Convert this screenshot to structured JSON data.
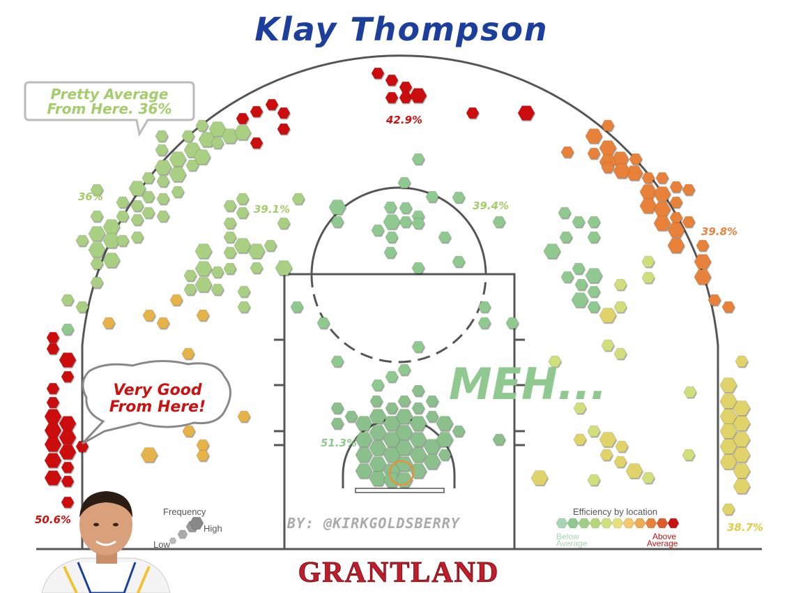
{
  "title": "Klay Thompson",
  "brand": "GRANTLAND",
  "credit": "BY: @KIRKGOLDSBERRY",
  "annotations": {
    "meh": "MEH...",
    "left_bubble_line1": "Pretty Average",
    "left_bubble_line2": "From Here. 36%",
    "corner_bubble_line1": "Very Good",
    "corner_bubble_line2": "From Here!"
  },
  "legend": {
    "frequency_title": "Frequency",
    "frequency_low": "Low",
    "frequency_high": "High",
    "efficiency_title": "Efficiency by location",
    "below_line1": "Below",
    "below_line2": "Average",
    "above_line1": "Above",
    "above_line2": "Average",
    "scale_colors": [
      "#a8d5b5",
      "#8fc98f",
      "#9fcf86",
      "#b6d67a",
      "#cfe07a",
      "#e8e07a",
      "#f2c86a",
      "#eeaa55",
      "#e8823a",
      "#dd5a2a",
      "#cc1111"
    ]
  },
  "colors": {
    "court_line": "#555555",
    "title": "#1c3f9c",
    "brand": "#c21d2a"
  },
  "chart_data": {
    "type": "heatmap",
    "title": "Klay Thompson",
    "encoding": "hexagon size = shot frequency, hexagon color = efficiency vs. league average",
    "zones": [
      {
        "label": "50.6%",
        "zone": "left corner three",
        "fg_pct": 50.6,
        "rating": "above average"
      },
      {
        "label": "36%",
        "zone": "left wing three",
        "fg_pct": 36.0,
        "rating": "average"
      },
      {
        "label": "42.9%",
        "zone": "top of key three",
        "fg_pct": 42.9,
        "rating": "above average"
      },
      {
        "label": "39.8%",
        "zone": "right wing three",
        "fg_pct": 39.8,
        "rating": "above average"
      },
      {
        "label": "38.7%",
        "zone": "right corner three",
        "fg_pct": 38.7,
        "rating": "slightly above average"
      },
      {
        "label": "39.1%",
        "zone": "left elbow mid-range",
        "fg_pct": 39.1,
        "rating": "below average"
      },
      {
        "label": "39.4%",
        "zone": "right elbow mid-range",
        "fg_pct": 39.4,
        "rating": "below average"
      },
      {
        "label": "51.3%",
        "zone": "restricted area",
        "fg_pct": 51.3,
        "rating": "below average"
      }
    ]
  }
}
